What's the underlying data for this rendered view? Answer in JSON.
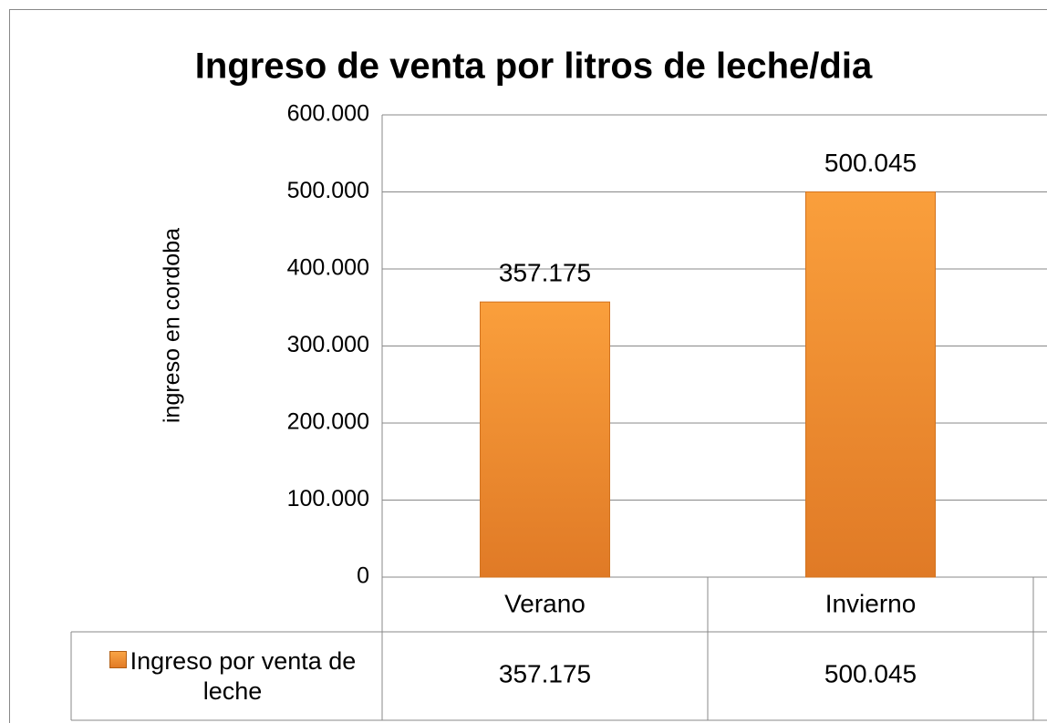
{
  "chart_data": {
    "type": "bar",
    "title": "Ingreso de venta por litros de leche/dia",
    "y_label": "ingreso en cordoba",
    "categories": [
      "Verano",
      "Invierno"
    ],
    "series": [
      {
        "name": "Ingreso por venta de leche",
        "color": "#f28c2e",
        "values": [
          357175,
          500045
        ],
        "value_labels": [
          "357.175",
          "500.045"
        ]
      }
    ],
    "ylim": [
      0,
      600000
    ],
    "yticks": [
      0,
      {
        "value": 100000,
        "label": "100.000"
      },
      {
        "value": 200000,
        "label": "200.000"
      },
      {
        "value": 300000,
        "label": "300.000"
      },
      {
        "value": 400000,
        "label": "400.000"
      },
      {
        "value": 500000,
        "label": "500.000"
      },
      {
        "value": 600000,
        "label": "600.000"
      }
    ],
    "grid": true,
    "data_table": true
  }
}
